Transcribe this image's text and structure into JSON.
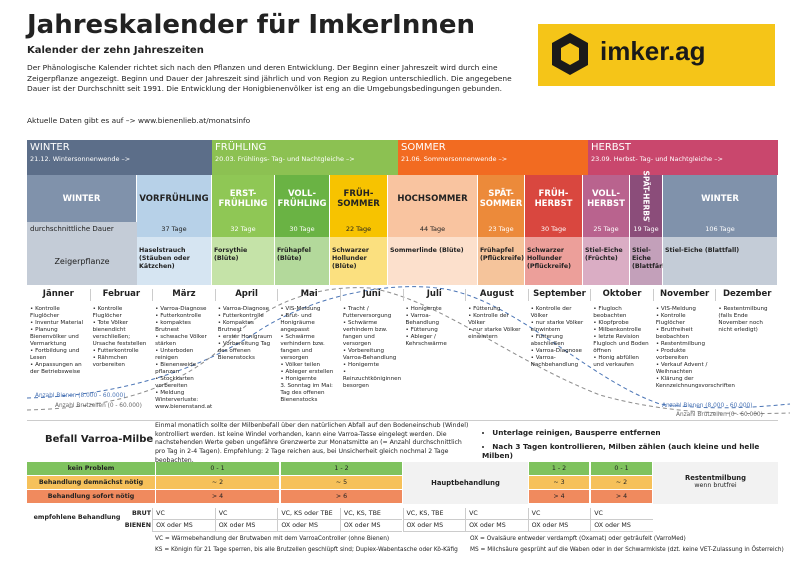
{
  "header": {
    "title": "Jahreskalender für ImkerInnen",
    "subtitle": "Kalender der zehn Jahreszeiten",
    "intro": "Der Phänologische Kalender richtet sich nach den Pflanzen und deren Entwicklung. Der Beginn einer Jahreszeit wird durch eine Zeigerpflanze angezeigt. Beginn und Dauer der Jahreszeit sind jährlich und von Region zu Region unterschiedlich. Die angegebene Dauer ist der Durchschnitt seit 1991. Die Entwicklung der Honigbienenvölker ist eng an die Umgebungsbedingungen gebunden.",
    "link": "Aktuelle Daten gibt es auf –> www.bienenlieb.at/monatsinfo",
    "logo": "imker.ag"
  },
  "seasons": [
    {
      "name": "WINTER",
      "note": "21.12. Wintersonnenwende –>"
    },
    {
      "name": "FRÜHLING",
      "note": "20.03. Frühlings- Tag- und Nachtgleiche –>"
    },
    {
      "name": "SOMMER",
      "note": "21.06. Sommersonnenwende –>"
    },
    {
      "name": "HERBST",
      "note": "23.09. Herbst- Tag- und Nachtgleiche –>"
    }
  ],
  "row_labels": {
    "duration": "durchschnittliche Dauer",
    "plant": "Zeigerpflanze"
  },
  "phases": [
    {
      "name": "WINTER"
    },
    {
      "name": "VORFRÜHLING",
      "duration": "37 Tage",
      "plant": "Haselstrauch (Stäuben oder Kätzchen)"
    },
    {
      "name": "ERST-FRÜHLING",
      "duration": "32 Tage",
      "plant": "Forsythie (Blüte)"
    },
    {
      "name": "VOLL-FRÜHLING",
      "duration": "30 Tage",
      "plant": "Frühapfel (Blüte)"
    },
    {
      "name": "FRÜH-SOMMER",
      "duration": "22 Tage",
      "plant": "Schwarzer Hollunder (Blüte)"
    },
    {
      "name": "HOCHSOMMER",
      "duration": "44 Tage",
      "plant": "Sommerlinde (Blüte)"
    },
    {
      "name": "SPÄT-SOMMER",
      "duration": "23 Tage",
      "plant": "Frühapfel (Pflückreife)"
    },
    {
      "name": "FRÜH-HERBST",
      "duration": "30 Tage",
      "plant": "Schwarzer Hollunder (Pflückreife)"
    },
    {
      "name": "VOLL-HERBST",
      "duration": "25 Tage",
      "plant": "Stiel-Eiche (Früchte)"
    },
    {
      "name": "SPÄT-HERBST",
      "duration": "19 Tage",
      "plant": "Stiel-Eiche (Blattfärbung)"
    },
    {
      "name": "WINTER",
      "duration": "106 Tage",
      "plant": "Stiel-Eiche (Blattfall)"
    }
  ],
  "months": [
    {
      "name": "Jänner",
      "items": [
        "• Kontrolle Fluglöcher",
        "• Inventur Material",
        "• Planung Bienenvölker und Vermarktung",
        "• Fortbildung und Lesen",
        "• Anpassungen an der Betriebsweise"
      ]
    },
    {
      "name": "Februar",
      "items": [
        "• Kontrolle Fluglöcher",
        "• Tote Völker bienendicht verschließen; Ursache feststellen",
        "• Futterkontrolle",
        "• Rähmchen vorbereiten"
      ]
    },
    {
      "name": "März",
      "items": [
        "• Varroa-Diagnose",
        "• Futterkontrolle",
        "• kompaktes Brutnest",
        "• schwache Völker stärken",
        "• Unterboden reinigen",
        "• Bienenweide pflanzen",
        "• Stockkarten vorbereiten",
        "• Meldung Winterverluste: www.bienenstand.at"
      ]
    },
    {
      "name": "April",
      "items": [
        "• Varroa-Diagnose",
        "• Futterkontrolle",
        "• Kompaktes Brutnest",
        "• erster Honigraum",
        "• Vorbereitung Tag des offenen Bienenstocks"
      ]
    },
    {
      "name": "Mai",
      "items": [
        "• VIS-Meldung",
        "• Brut- und Honigräume angepasst",
        "• Schwärme verhindern bzw. fangen und versorgen",
        "• Völker teilen",
        "• Ableger erstellen",
        "• Honigernte",
        "3. Sonntag im Mai: Tag des offenen Bienenstocks"
      ]
    },
    {
      "name": "Juni",
      "items": [
        "• Tracht / Futterversorgung",
        "• Schwärme verhindern bzw. fangen und versorgen",
        "• Vorbereitung Varroa-Behandlung",
        "• Honigernte",
        "• Reinzuchtköniginnen besorgen"
      ]
    },
    {
      "name": "Juli",
      "items": [
        "• Honigernte",
        "• Varroa-Behandlung",
        "• Fütterung",
        "• Ableger / Kehrschwärme"
      ]
    },
    {
      "name": "August",
      "items": [
        "• Fütterung",
        "• Kontrolle der Völker",
        "• nur starke Völker einwintern"
      ]
    },
    {
      "name": "September",
      "items": [
        "• Kontrolle der Völker",
        "• nur starke Völker einwintern",
        "• Fütterung abschließen",
        "• Varroa-Diagnose",
        "• Varroa-Nachbehandlung"
      ]
    },
    {
      "name": "Oktober",
      "items": [
        "• Flugloch beobachten",
        "• Klopfprobe",
        "• Milbenkontrolle",
        "• letzte Revision",
        "Flugloch und Boden öffnen",
        "• Honig abfüllen und verkaufen"
      ]
    },
    {
      "name": "November",
      "items": [
        "• VIS-Meldung",
        "• Kontrolle Fluglöcher",
        "• Brutfreiheit beobachten",
        "• Restentmilbung",
        "• Produkte vorbereiten",
        "• Verkauf Advent / Weihnachten",
        "• Klärung der Kennzeichnungsvorschriften"
      ]
    },
    {
      "name": "Dezember",
      "items": [
        "• Restentmilbung (falls Ende November noch nicht erledigt)"
      ]
    }
  ],
  "curves": {
    "bees": "Anzahl Bienen (8.000 - 60.000)",
    "brood": "Anzahl Brutzellen (0 - 60.000)"
  },
  "varroa": {
    "title": "Befall Varroa-Milbe",
    "text": "Einmal monatlich sollte der Milbenbefall über den natürlichen Abfall auf den Bodeneinschub (Windel) kontrolliert werden. Ist keine Windel vorhanden, kann eine Varroa-Tasse eingelegt werden. Die nachstehenden Werte geben ungefähre Grenzwerte zur Monatsmitte an (= Anzahl durchschnittlich pro Tag in 2-4 Tagen). Empfehlung: 2 Tage reichen aus, bei Unsicherheit gleich nochmal 2 Tage beobachten.",
    "bullets": [
      "Unterlage reinigen, Bausperre entfernen",
      "Nach 3 Tagen kontrollieren, Milben zählen (auch kleine und helle Milben)"
    ],
    "levels": [
      {
        "label": "kein Problem",
        "values": [
          "0 - 1",
          "1 - 2",
          "1 - 2",
          "0 - 1"
        ]
      },
      {
        "label": "Behandlung demnächst nötig",
        "values": [
          "~ 2",
          "~ 5",
          "~ 3",
          "~ 2"
        ]
      },
      {
        "label": "Behandlung sofort nötig",
        "values": [
          "> 4",
          "> 6",
          "> 4",
          "> 4"
        ]
      }
    ],
    "main_treatment": "Hauptbehandlung",
    "rest_title": "Restentmilbung",
    "rest_note": "wenn brutfrei",
    "treatment_label": "empfohlene Behandlung",
    "treatments": [
      {
        "label": "BRUT",
        "values": [
          "VC",
          "VC",
          "VC, KS oder TBE",
          "VC, KS, TBE",
          "VC, KS, TBE",
          "VC",
          "VC",
          "VC"
        ]
      },
      {
        "label": "BIENEN",
        "values": [
          "OX oder MS",
          "OX oder MS",
          "OX oder MS",
          "OX oder MS",
          "OX oder MS",
          "OX oder MS",
          "OX oder MS",
          "OX oder MS"
        ]
      }
    ]
  },
  "footnotes": [
    "VC = Wärmebehandlung der Brutwaben mit dem VarroaController (ohne Bienen)",
    "KS = Königin für 21 Tage sperren, bis alle Brutzellen geschlüpft sind; Duplex-Wabentasche oder Kö-Käfig",
    "OX = Ovalsäure entweder verdampft (Oxamat) oder geträufelt (VarroMed)",
    "MS = Milchsäure gesprüht auf die Waben oder in der Schwarmkiste (dzt. keine VET-Zulassung in Österreich)"
  ]
}
